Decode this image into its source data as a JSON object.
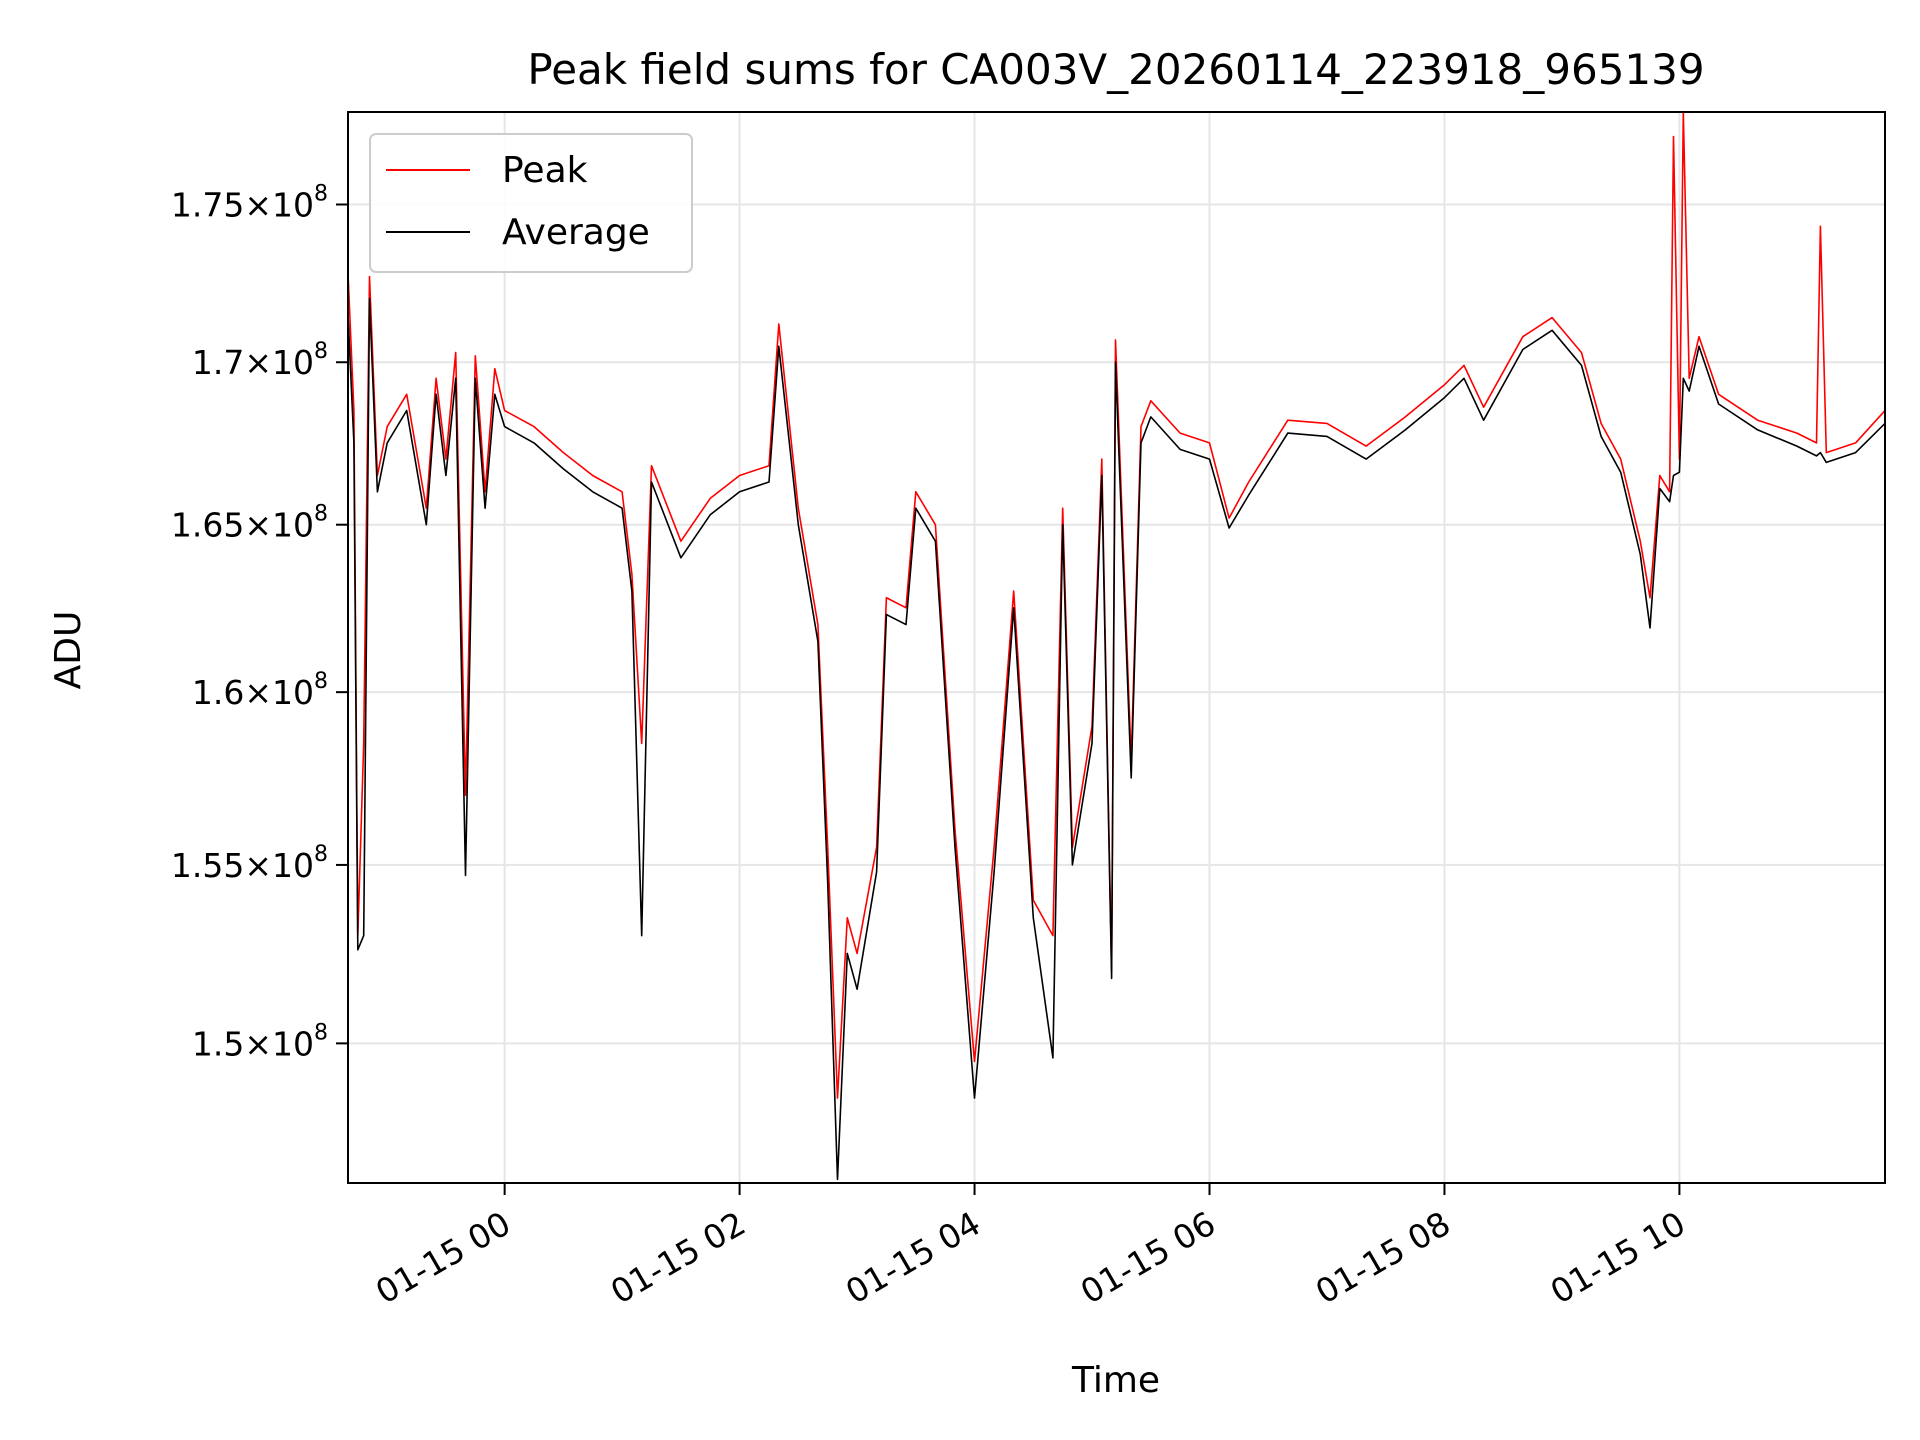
{
  "chart_data": {
    "type": "line",
    "title": "Peak field sums for CA003V_20260114_223918_965139",
    "xlabel": "Time",
    "ylabel": "ADU",
    "yscale": "log",
    "grid": true,
    "legend_position": "upper-left",
    "xlim": [
      "2026-01-14 22:40",
      "2026-01-15 11:45"
    ],
    "ylim": [
      146200000,
      178000000
    ],
    "x_ticks": [
      "01-15 00",
      "01-15 02",
      "01-15 04",
      "01-15 06",
      "01-15 08",
      "01-15 10"
    ],
    "y_ticks": [
      {
        "value": 150000000,
        "mantissa": "1.5",
        "exponent": "8"
      },
      {
        "value": 155000000,
        "mantissa": "1.55",
        "exponent": "8"
      },
      {
        "value": 160000000,
        "mantissa": "1.6",
        "exponent": "8"
      },
      {
        "value": 165000000,
        "mantissa": "1.65",
        "exponent": "8"
      },
      {
        "value": 170000000,
        "mantissa": "1.7",
        "exponent": "8"
      },
      {
        "value": 175000000,
        "mantissa": "1.75",
        "exponent": "8"
      }
    ],
    "series": [
      {
        "name": "Peak",
        "color": "#ff0000",
        "points": [
          [
            "2026-01-14 22:40",
            172800000
          ],
          [
            "2026-01-14 22:43",
            168500000
          ],
          [
            "2026-01-14 22:45",
            153000000
          ],
          [
            "2026-01-14 22:48",
            158500000
          ],
          [
            "2026-01-14 22:51",
            172700000
          ],
          [
            "2026-01-14 22:55",
            166500000
          ],
          [
            "2026-01-14 23:00",
            168000000
          ],
          [
            "2026-01-14 23:10",
            169000000
          ],
          [
            "2026-01-14 23:20",
            165500000
          ],
          [
            "2026-01-14 23:25",
            169500000
          ],
          [
            "2026-01-14 23:30",
            167000000
          ],
          [
            "2026-01-14 23:35",
            170300000
          ],
          [
            "2026-01-14 23:40",
            157000000
          ],
          [
            "2026-01-14 23:45",
            170200000
          ],
          [
            "2026-01-14 23:50",
            166000000
          ],
          [
            "2026-01-14 23:55",
            169800000
          ],
          [
            "2026-01-15 00:00",
            168500000
          ],
          [
            "2026-01-15 00:15",
            168000000
          ],
          [
            "2026-01-15 00:30",
            167200000
          ],
          [
            "2026-01-15 00:45",
            166500000
          ],
          [
            "2026-01-15 01:00",
            166000000
          ],
          [
            "2026-01-15 01:05",
            163500000
          ],
          [
            "2026-01-15 01:10",
            158500000
          ],
          [
            "2026-01-15 01:15",
            166800000
          ],
          [
            "2026-01-15 01:30",
            164500000
          ],
          [
            "2026-01-15 01:45",
            165800000
          ],
          [
            "2026-01-15 02:00",
            166500000
          ],
          [
            "2026-01-15 02:15",
            166800000
          ],
          [
            "2026-01-15 02:20",
            171200000
          ],
          [
            "2026-01-15 02:30",
            165500000
          ],
          [
            "2026-01-15 02:40",
            162000000
          ],
          [
            "2026-01-15 02:45",
            155500000
          ],
          [
            "2026-01-15 02:50",
            148500000
          ],
          [
            "2026-01-15 02:55",
            153500000
          ],
          [
            "2026-01-15 03:00",
            152500000
          ],
          [
            "2026-01-15 03:10",
            155500000
          ],
          [
            "2026-01-15 03:15",
            162800000
          ],
          [
            "2026-01-15 03:25",
            162500000
          ],
          [
            "2026-01-15 03:30",
            166000000
          ],
          [
            "2026-01-15 03:40",
            165000000
          ],
          [
            "2026-01-15 03:50",
            156000000
          ],
          [
            "2026-01-15 04:00",
            149500000
          ],
          [
            "2026-01-15 04:10",
            155500000
          ],
          [
            "2026-01-15 04:20",
            163000000
          ],
          [
            "2026-01-15 04:30",
            154000000
          ],
          [
            "2026-01-15 04:40",
            153000000
          ],
          [
            "2026-01-15 04:45",
            165500000
          ],
          [
            "2026-01-15 04:50",
            155500000
          ],
          [
            "2026-01-15 05:00",
            159000000
          ],
          [
            "2026-01-15 05:05",
            167000000
          ],
          [
            "2026-01-15 05:10",
            152000000
          ],
          [
            "2026-01-15 05:12",
            170700000
          ],
          [
            "2026-01-15 05:20",
            158000000
          ],
          [
            "2026-01-15 05:25",
            168000000
          ],
          [
            "2026-01-15 05:30",
            168800000
          ],
          [
            "2026-01-15 05:45",
            167800000
          ],
          [
            "2026-01-15 06:00",
            167500000
          ],
          [
            "2026-01-15 06:10",
            165200000
          ],
          [
            "2026-01-15 06:20",
            166300000
          ],
          [
            "2026-01-15 06:40",
            168200000
          ],
          [
            "2026-01-15 07:00",
            168100000
          ],
          [
            "2026-01-15 07:20",
            167400000
          ],
          [
            "2026-01-15 07:40",
            168300000
          ],
          [
            "2026-01-15 08:00",
            169300000
          ],
          [
            "2026-01-15 08:10",
            169900000
          ],
          [
            "2026-01-15 08:20",
            168600000
          ],
          [
            "2026-01-15 08:40",
            170800000
          ],
          [
            "2026-01-15 08:55",
            171400000
          ],
          [
            "2026-01-15 09:10",
            170300000
          ],
          [
            "2026-01-15 09:20",
            168100000
          ],
          [
            "2026-01-15 09:30",
            167000000
          ],
          [
            "2026-01-15 09:40",
            164500000
          ],
          [
            "2026-01-15 09:45",
            162800000
          ],
          [
            "2026-01-15 09:50",
            166500000
          ],
          [
            "2026-01-15 09:55",
            166000000
          ],
          [
            "2026-01-15 09:57",
            177200000
          ],
          [
            "2026-01-15 10:00",
            167000000
          ],
          [
            "2026-01-15 10:02",
            178000000
          ],
          [
            "2026-01-15 10:05",
            169500000
          ],
          [
            "2026-01-15 10:10",
            170800000
          ],
          [
            "2026-01-15 10:20",
            169000000
          ],
          [
            "2026-01-15 10:40",
            168200000
          ],
          [
            "2026-01-15 11:00",
            167800000
          ],
          [
            "2026-01-15 11:10",
            167500000
          ],
          [
            "2026-01-15 11:12",
            174300000
          ],
          [
            "2026-01-15 11:15",
            167200000
          ],
          [
            "2026-01-15 11:30",
            167500000
          ],
          [
            "2026-01-15 11:45",
            168500000
          ]
        ]
      },
      {
        "name": "Average",
        "color": "#000000",
        "points": [
          [
            "2026-01-14 22:40",
            171500000
          ],
          [
            "2026-01-14 22:43",
            167500000
          ],
          [
            "2026-01-14 22:45",
            152600000
          ],
          [
            "2026-01-14 22:48",
            153000000
          ],
          [
            "2026-01-14 22:51",
            172000000
          ],
          [
            "2026-01-14 22:55",
            166000000
          ],
          [
            "2026-01-14 23:00",
            167500000
          ],
          [
            "2026-01-14 23:10",
            168500000
          ],
          [
            "2026-01-14 23:20",
            165000000
          ],
          [
            "2026-01-14 23:25",
            169000000
          ],
          [
            "2026-01-14 23:30",
            166500000
          ],
          [
            "2026-01-14 23:35",
            169500000
          ],
          [
            "2026-01-14 23:40",
            154700000
          ],
          [
            "2026-01-14 23:45",
            169500000
          ],
          [
            "2026-01-14 23:50",
            165500000
          ],
          [
            "2026-01-14 23:55",
            169000000
          ],
          [
            "2026-01-15 00:00",
            168000000
          ],
          [
            "2026-01-15 00:15",
            167500000
          ],
          [
            "2026-01-15 00:30",
            166700000
          ],
          [
            "2026-01-15 00:45",
            166000000
          ],
          [
            "2026-01-15 01:00",
            165500000
          ],
          [
            "2026-01-15 01:05",
            163000000
          ],
          [
            "2026-01-15 01:10",
            153000000
          ],
          [
            "2026-01-15 01:15",
            166300000
          ],
          [
            "2026-01-15 01:30",
            164000000
          ],
          [
            "2026-01-15 01:45",
            165300000
          ],
          [
            "2026-01-15 02:00",
            166000000
          ],
          [
            "2026-01-15 02:15",
            166300000
          ],
          [
            "2026-01-15 02:20",
            170500000
          ],
          [
            "2026-01-15 02:30",
            165000000
          ],
          [
            "2026-01-15 02:40",
            161500000
          ],
          [
            "2026-01-15 02:45",
            154500000
          ],
          [
            "2026-01-15 02:50",
            146300000
          ],
          [
            "2026-01-15 02:55",
            152500000
          ],
          [
            "2026-01-15 03:00",
            151500000
          ],
          [
            "2026-01-15 03:10",
            154800000
          ],
          [
            "2026-01-15 03:15",
            162300000
          ],
          [
            "2026-01-15 03:25",
            162000000
          ],
          [
            "2026-01-15 03:30",
            165500000
          ],
          [
            "2026-01-15 03:40",
            164500000
          ],
          [
            "2026-01-15 03:50",
            155500000
          ],
          [
            "2026-01-15 04:00",
            148500000
          ],
          [
            "2026-01-15 04:10",
            154800000
          ],
          [
            "2026-01-15 04:20",
            162500000
          ],
          [
            "2026-01-15 04:30",
            153500000
          ],
          [
            "2026-01-15 04:40",
            149600000
          ],
          [
            "2026-01-15 04:45",
            165000000
          ],
          [
            "2026-01-15 04:50",
            155000000
          ],
          [
            "2026-01-15 05:00",
            158500000
          ],
          [
            "2026-01-15 05:05",
            166500000
          ],
          [
            "2026-01-15 05:10",
            151800000
          ],
          [
            "2026-01-15 05:12",
            170000000
          ],
          [
            "2026-01-15 05:20",
            157500000
          ],
          [
            "2026-01-15 05:25",
            167500000
          ],
          [
            "2026-01-15 05:30",
            168300000
          ],
          [
            "2026-01-15 05:45",
            167300000
          ],
          [
            "2026-01-15 06:00",
            167000000
          ],
          [
            "2026-01-15 06:10",
            164900000
          ],
          [
            "2026-01-15 06:20",
            165900000
          ],
          [
            "2026-01-15 06:40",
            167800000
          ],
          [
            "2026-01-15 07:00",
            167700000
          ],
          [
            "2026-01-15 07:20",
            167000000
          ],
          [
            "2026-01-15 07:40",
            167900000
          ],
          [
            "2026-01-15 08:00",
            168900000
          ],
          [
            "2026-01-15 08:10",
            169500000
          ],
          [
            "2026-01-15 08:20",
            168200000
          ],
          [
            "2026-01-15 08:40",
            170400000
          ],
          [
            "2026-01-15 08:55",
            171000000
          ],
          [
            "2026-01-15 09:10",
            169900000
          ],
          [
            "2026-01-15 09:20",
            167700000
          ],
          [
            "2026-01-15 09:30",
            166600000
          ],
          [
            "2026-01-15 09:40",
            164100000
          ],
          [
            "2026-01-15 09:45",
            161900000
          ],
          [
            "2026-01-15 09:50",
            166100000
          ],
          [
            "2026-01-15 09:55",
            165700000
          ],
          [
            "2026-01-15 09:57",
            166500000
          ],
          [
            "2026-01-15 10:00",
            166600000
          ],
          [
            "2026-01-15 10:02",
            169500000
          ],
          [
            "2026-01-15 10:05",
            169100000
          ],
          [
            "2026-01-15 10:10",
            170500000
          ],
          [
            "2026-01-15 10:20",
            168700000
          ],
          [
            "2026-01-15 10:40",
            167900000
          ],
          [
            "2026-01-15 11:00",
            167400000
          ],
          [
            "2026-01-15 11:10",
            167100000
          ],
          [
            "2026-01-15 11:12",
            167200000
          ],
          [
            "2026-01-15 11:15",
            166900000
          ],
          [
            "2026-01-15 11:30",
            167200000
          ],
          [
            "2026-01-15 11:45",
            168100000
          ]
        ]
      }
    ]
  }
}
